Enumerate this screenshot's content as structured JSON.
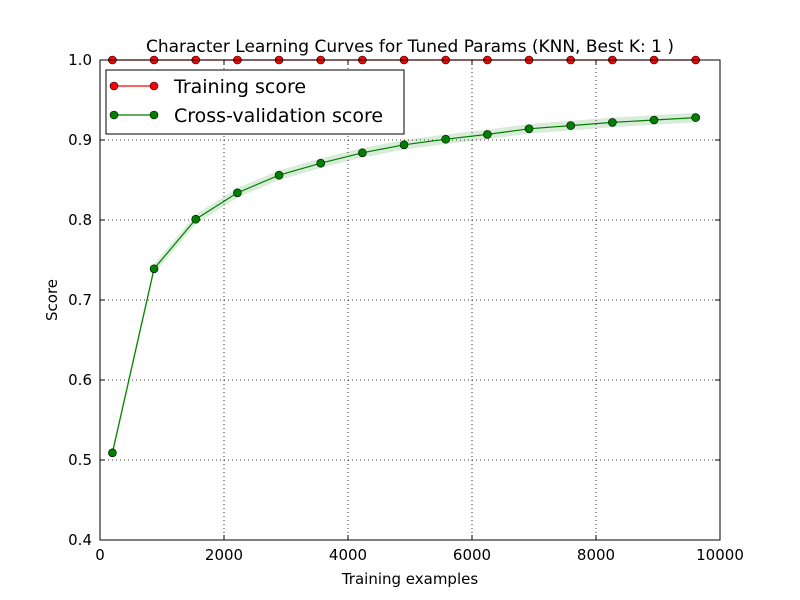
{
  "chart_data": {
    "type": "line",
    "title": "Character Learning Curves for Tuned Params (KNN, Best K: 1 )",
    "xlabel": "Training examples",
    "ylabel": "Score",
    "xlim": [
      0,
      10000
    ],
    "ylim": [
      0.4,
      1.0
    ],
    "xticks": [
      0,
      2000,
      4000,
      6000,
      8000,
      10000
    ],
    "yticks": [
      0.4,
      0.5,
      0.6,
      0.7,
      0.8,
      0.9,
      1.0
    ],
    "xtick_labels": [
      "0",
      "2000",
      "4000",
      "6000",
      "8000",
      "10000"
    ],
    "ytick_labels": [
      "0.4",
      "0.5",
      "0.6",
      "0.7",
      "0.8",
      "0.9",
      "1.0"
    ],
    "grid": true,
    "legend_position": "top-left",
    "x": [
      200,
      872,
      1544,
      2216,
      2888,
      3560,
      4232,
      4904,
      5576,
      6248,
      6920,
      7592,
      8264,
      8936,
      9608
    ],
    "series": [
      {
        "name": "Training score",
        "color": "#ff0000",
        "values": [
          1.0,
          1.0,
          1.0,
          1.0,
          1.0,
          1.0,
          1.0,
          1.0,
          1.0,
          1.0,
          1.0,
          1.0,
          1.0,
          1.0,
          1.0
        ],
        "band": 0.0
      },
      {
        "name": "Cross-validation score",
        "color": "#008000",
        "values": [
          0.509,
          0.739,
          0.801,
          0.834,
          0.856,
          0.871,
          0.884,
          0.894,
          0.901,
          0.907,
          0.914,
          0.918,
          0.922,
          0.925,
          0.928
        ],
        "band": 0.006
      }
    ]
  }
}
